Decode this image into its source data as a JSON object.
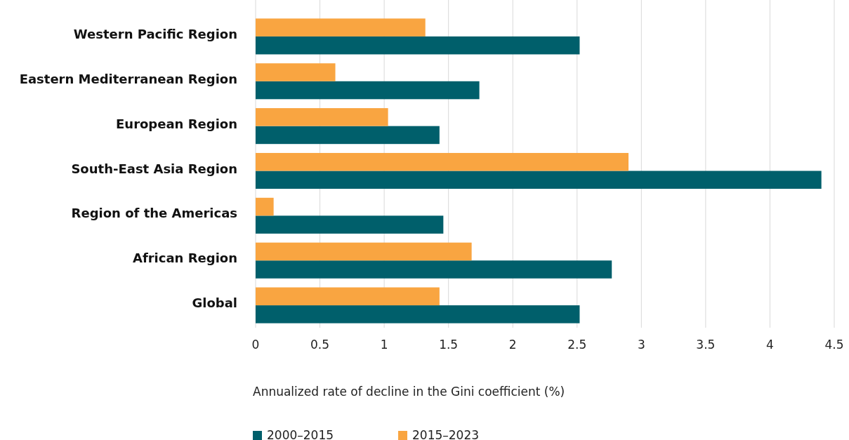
{
  "chart_data": {
    "type": "bar",
    "orientation": "horizontal",
    "xlabel": "Annualized rate of decline in the Gini coefficient (%)",
    "categories": [
      "Western Pacific Region",
      "Eastern Mediterranean Region",
      "European Region",
      "South-East Asia Region",
      "Region of the Americas",
      "African Region",
      "Global"
    ],
    "series": [
      {
        "name": "2000–2015",
        "color": "#005f6b",
        "values": [
          2.52,
          1.74,
          1.43,
          4.4,
          1.46,
          2.77,
          2.52
        ]
      },
      {
        "name": "2015–2023",
        "color": "#f9a541",
        "values": [
          1.32,
          0.62,
          1.03,
          2.9,
          0.14,
          1.68,
          1.43
        ]
      }
    ],
    "xlim": [
      0,
      4.5
    ],
    "xticks": [
      0,
      0.5,
      1,
      1.5,
      2,
      2.5,
      3,
      3.5,
      4,
      4.5
    ],
    "grid": "x",
    "legend": "bottom"
  }
}
